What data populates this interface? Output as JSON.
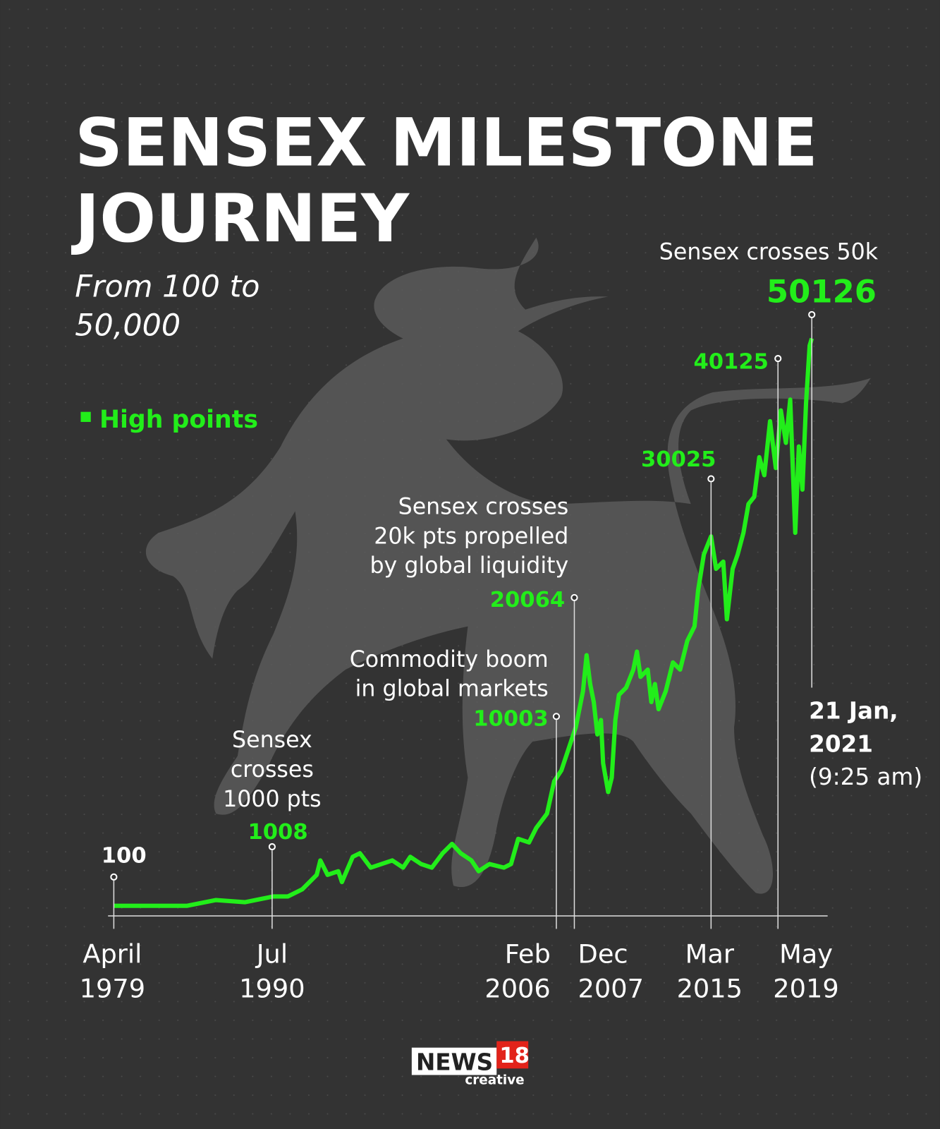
{
  "title": [
    "SENSEX MILESTONE",
    "JOURNEY"
  ],
  "subtitle": [
    "From 100 to",
    "50,000"
  ],
  "legend": "High points",
  "milestones": [
    {
      "value": 100,
      "date": [
        "April",
        "1979"
      ]
    },
    {
      "value": 1008,
      "date": [
        "Jul",
        "1990"
      ],
      "note": [
        "Sensex",
        "crosses",
        "1000 pts"
      ]
    },
    {
      "value": 10003,
      "date": [
        "Feb",
        "2006"
      ],
      "note": [
        "Commodity boom",
        "in global markets"
      ]
    },
    {
      "value": 20064,
      "date": [
        "Dec",
        "2007"
      ],
      "note": [
        "Sensex crosses",
        "20k pts propelled",
        "by global liquidity"
      ]
    },
    {
      "value": 30025,
      "date": [
        "Mar",
        "2015"
      ]
    },
    {
      "value": 40125,
      "date": [
        "May",
        "2019"
      ]
    },
    {
      "value": 50126,
      "date": [
        "21 Jan,",
        "2021",
        "(9:25 am)"
      ],
      "note": [
        "Sensex crosses 50k"
      ]
    }
  ],
  "logo": {
    "brand": "NEWS",
    "number": "18",
    "sub": "creative"
  }
}
